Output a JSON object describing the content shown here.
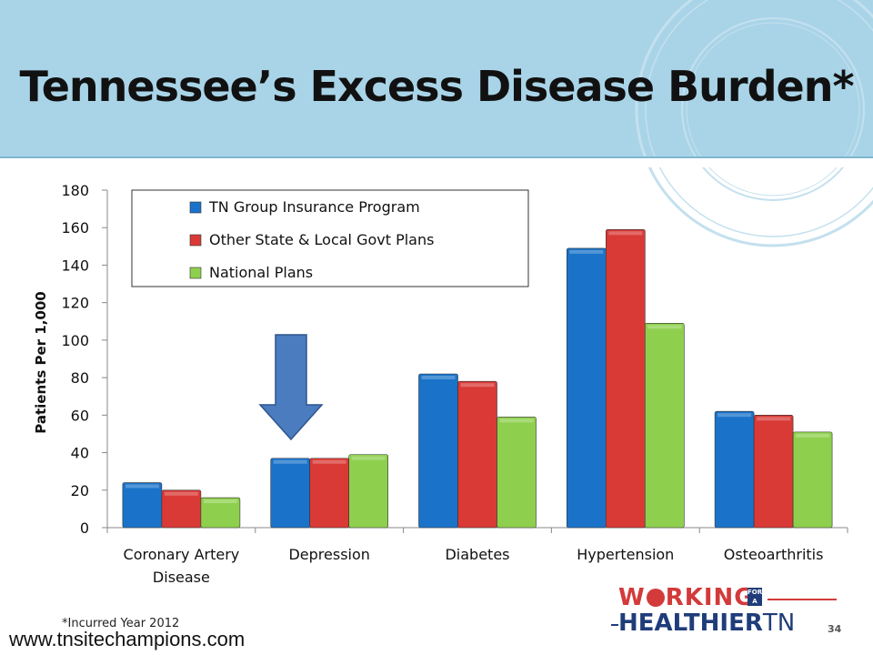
{
  "slide": {
    "title": "Tennessee’s Excess Disease Burden*",
    "footnote": "*Incurred Year 2012",
    "website": "www.tnsitechampions.com",
    "page_number": "34",
    "logo": {
      "line1_pre": "W",
      "line1_post": "RKING",
      "for_badge": "FOR A",
      "line2": "HEALTHIER",
      "line2_suffix": "TN"
    }
  },
  "colors": {
    "header_bg": "#a9d4e8",
    "series": [
      "#1a73c9",
      "#d93a36",
      "#8ed04e"
    ],
    "arrow": "#4a7cbf"
  },
  "chart_data": {
    "type": "bar",
    "categories": [
      "Coronary Artery Disease",
      "Depression",
      "Diabetes",
      "Hypertension",
      "Osteoarthritis"
    ],
    "category_lines": [
      [
        "Coronary Artery",
        "Disease"
      ],
      [
        "Depression"
      ],
      [
        "Diabetes"
      ],
      [
        "Hypertension"
      ],
      [
        "Osteoarthritis"
      ]
    ],
    "series": [
      {
        "name": "TN Group Insurance Program",
        "values": [
          24,
          37,
          82,
          149,
          62
        ]
      },
      {
        "name": "Other State & Local Govt Plans",
        "values": [
          20,
          37,
          78,
          159,
          60
        ]
      },
      {
        "name": "National Plans",
        "values": [
          16,
          39,
          59,
          109,
          51
        ]
      }
    ],
    "title": "",
    "xlabel": "",
    "ylabel": "Patients Per 1,000",
    "ylim": [
      0,
      180
    ],
    "yticks": [
      0,
      20,
      40,
      60,
      80,
      100,
      120,
      140,
      160,
      180
    ],
    "grid": false,
    "legend": "top-left",
    "annotation": "down arrow pointing to Depression"
  }
}
